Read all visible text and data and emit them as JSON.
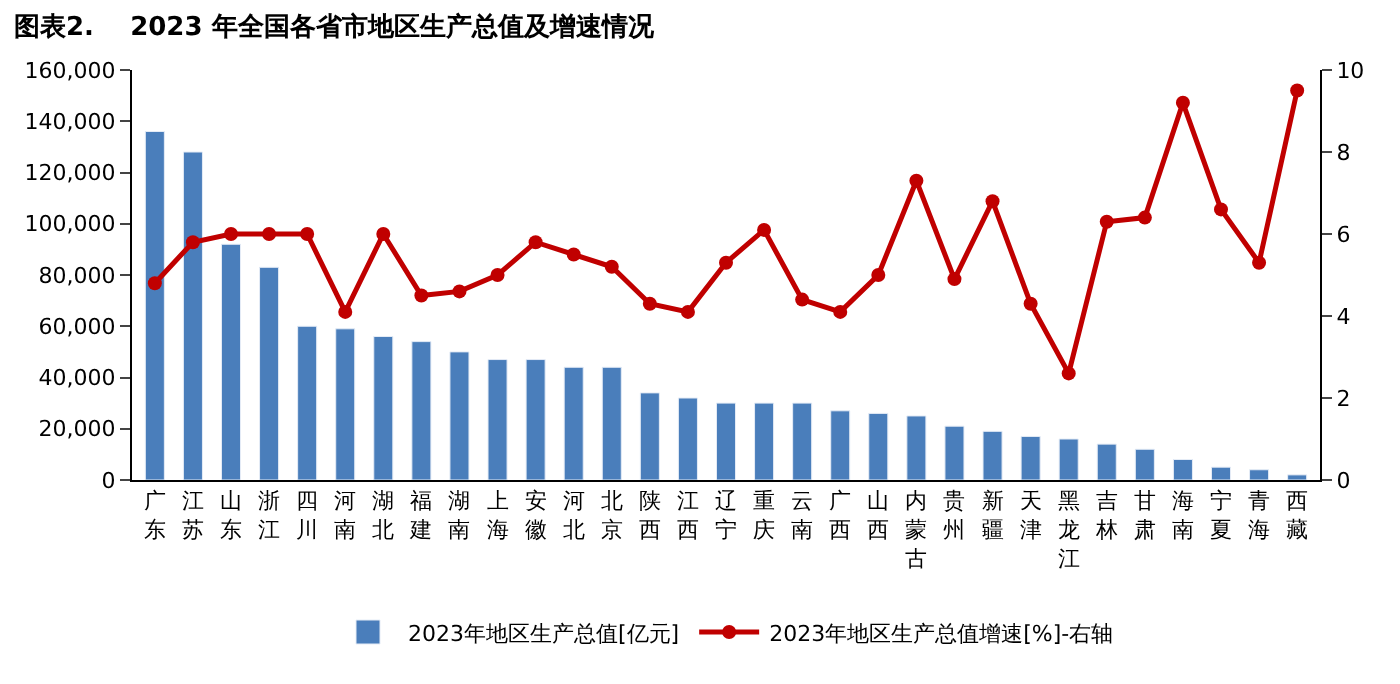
{
  "chart_data": {
    "type": "bar",
    "title": "图表2.    2023 年全国各省市地区生产总值及增速情况",
    "categories": [
      "广东",
      "江苏",
      "山东",
      "浙江",
      "四川",
      "河南",
      "湖北",
      "福建",
      "湖南",
      "上海",
      "安徽",
      "河北",
      "北京",
      "陕西",
      "江西",
      "辽宁",
      "重庆",
      "云南",
      "广西",
      "山西",
      "内蒙古",
      "贵州",
      "新疆",
      "天津",
      "黑龙江",
      "吉林",
      "甘肃",
      "海南",
      "宁夏",
      "青海",
      "西藏"
    ],
    "series": [
      {
        "name": "2023年地区生产总值[亿元]",
        "color": "#4a7ebb",
        "values": [
          136000,
          128000,
          92000,
          83000,
          60000,
          59000,
          56000,
          54000,
          50000,
          47000,
          47000,
          44000,
          44000,
          34000,
          32000,
          30000,
          30000,
          30000,
          27000,
          26000,
          25000,
          21000,
          19000,
          17000,
          16000,
          14000,
          12000,
          8000,
          5000,
          4000,
          2000
        ]
      },
      {
        "name": "2023年地区生产总值增速[%]-右轴",
        "type": "line",
        "axis": "y2",
        "color": "#c00000",
        "marker": "circle",
        "values": [
          4.8,
          5.8,
          6.0,
          6.0,
          6.0,
          4.1,
          6.0,
          4.5,
          4.6,
          5.0,
          5.8,
          5.5,
          5.2,
          4.3,
          4.1,
          5.3,
          6.1,
          4.4,
          4.1,
          5.0,
          7.3,
          4.9,
          6.8,
          4.3,
          2.6,
          6.3,
          6.4,
          9.2,
          6.6,
          5.3,
          9.5
        ]
      }
    ],
    "ylim": [
      0,
      160000
    ],
    "yticks": [
      {
        "value": 0,
        "label": "0"
      },
      {
        "value": 20000,
        "label": "20,000"
      },
      {
        "value": 40000,
        "label": "40,000"
      },
      {
        "value": 60000,
        "label": "60,000"
      },
      {
        "value": 80000,
        "label": "80,000"
      },
      {
        "value": 100000,
        "label": "100,000"
      },
      {
        "value": 120000,
        "label": "120,000"
      },
      {
        "value": 140000,
        "label": "140,000"
      },
      {
        "value": 160000,
        "label": "160,000"
      }
    ],
    "y2lim": [
      0,
      10
    ],
    "y2ticks": [
      0,
      2,
      4,
      6,
      8,
      10
    ],
    "legend": "bottom"
  }
}
